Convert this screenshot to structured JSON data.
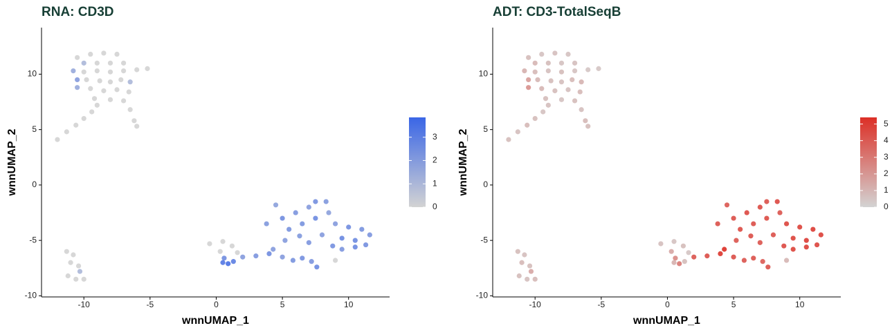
{
  "chart_data": [
    {
      "type": "scatter",
      "title": "RNA: CD3D",
      "x_label": "wnnUMAP_1",
      "y_label": "wnnUMAP_2",
      "xlim": [
        -13.2,
        13.1
      ],
      "ylim": [
        -10.1,
        14.2
      ],
      "xticks": [
        -10,
        -5,
        0,
        5,
        10
      ],
      "yticks": [
        -10,
        -5,
        0,
        5,
        10
      ],
      "colorbar": {
        "low": "#d3d3d3",
        "high": "#3a66e6",
        "lim": [
          0,
          3.85
        ],
        "ticks": [
          0,
          1,
          2,
          3
        ]
      },
      "x": [
        -10.5,
        -9.5,
        -8.5,
        -7.5,
        -10,
        -9,
        -8,
        -7,
        -10.8,
        -10,
        -9,
        -8,
        -7,
        -6,
        -5.2,
        -10.5,
        -9.8,
        -8.8,
        -8,
        -7.2,
        -6.5,
        -10.5,
        -9.5,
        -8.5,
        -7.5,
        -6.6,
        -9.2,
        -8,
        -7,
        -6.5,
        -6.2,
        -6,
        -12,
        -11.3,
        -10.6,
        -10,
        -9.4,
        -9,
        -11.3,
        -10.8,
        -11,
        -10.4,
        -10.3,
        -11.2,
        -10.6,
        -10,
        -0.5,
        0.5,
        1.2,
        1.6,
        0.3,
        0.6,
        0.9,
        0.5,
        1.3,
        2,
        3,
        4,
        4.3,
        5,
        5.8,
        6.5,
        7.2,
        7.6,
        5.2,
        5.5,
        5,
        6,
        7,
        7.5,
        8.3,
        6.5,
        7.5,
        8.5,
        9,
        10,
        11,
        11.6,
        10.5,
        9.5,
        8.8,
        9.5,
        10.5,
        11.3,
        8,
        7,
        6.3,
        9,
        4.5,
        3.8
      ],
      "y": [
        11.5,
        11.8,
        11.9,
        11.8,
        11,
        11,
        11,
        11,
        10.3,
        10.2,
        10.3,
        10.2,
        10.3,
        10.4,
        10.5,
        9.5,
        9.5,
        9.4,
        9.3,
        9.5,
        9.3,
        8.8,
        8.7,
        8.5,
        8.6,
        8.4,
        7.8,
        7.7,
        7.6,
        6.8,
        5.8,
        5.3,
        4.1,
        4.8,
        5.4,
        6,
        6.6,
        7.2,
        -6,
        -6.3,
        -7,
        -7.3,
        -7.8,
        -8.2,
        -8.5,
        -8.5,
        -5.3,
        -5.1,
        -5.5,
        -6.1,
        -6,
        -6.6,
        -7.1,
        -7,
        -6.9,
        -6.5,
        -6.4,
        -6.2,
        -5.8,
        -6.5,
        -6.8,
        -6.6,
        -6.9,
        -7.4,
        -5,
        -4,
        -3,
        -2.5,
        -2,
        -1.5,
        -1.5,
        -3.5,
        -3,
        -2.5,
        -3.5,
        -3.8,
        -4,
        -4.5,
        -5,
        -4.8,
        -5.5,
        -5.8,
        -5.6,
        -5.4,
        -4.5,
        -5.2,
        -4.6,
        -6.8,
        -1.8,
        -3.5
      ],
      "values": [
        0,
        0,
        0,
        0,
        1,
        0,
        0,
        0,
        1.5,
        0,
        0,
        0,
        0,
        0,
        0,
        2,
        0,
        0,
        0,
        0,
        1,
        1.5,
        0,
        0,
        0,
        0,
        0,
        0,
        0,
        0,
        0,
        0,
        0,
        0,
        0,
        0,
        0,
        0,
        0,
        0,
        0,
        0,
        1,
        0,
        0,
        0,
        0,
        0,
        0,
        0,
        0,
        2.5,
        3.5,
        3.2,
        3,
        2,
        2.2,
        2.5,
        2,
        2,
        2.3,
        2.4,
        2.2,
        2.6,
        2,
        2.3,
        2.5,
        2.2,
        2,
        2.4,
        2.1,
        2.3,
        2.6,
        1.8,
        2,
        2.5,
        2.3,
        2.2,
        2.6,
        2.7,
        2.4,
        2.2,
        2.6,
        2.4,
        2,
        2.2,
        2.1,
        0,
        1.8,
        2.1
      ]
    },
    {
      "type": "scatter",
      "title": "ADT: CD3-TotalSeqB",
      "x_label": "wnnUMAP_1",
      "y_label": "wnnUMAP_2",
      "xlim": [
        -13.2,
        13.1
      ],
      "ylim": [
        -10.1,
        14.2
      ],
      "xticks": [
        -10,
        -5,
        0,
        5,
        10
      ],
      "yticks": [
        -10,
        -5,
        0,
        5,
        10
      ],
      "colorbar": {
        "low": "#d3d3d3",
        "high": "#dc2f26",
        "lim": [
          0,
          5.4
        ],
        "ticks": [
          0,
          1,
          2,
          3,
          4,
          5
        ]
      },
      "x": [
        -10.5,
        -9.5,
        -8.5,
        -7.5,
        -10,
        -9,
        -8,
        -7,
        -10.8,
        -10,
        -9,
        -8,
        -7,
        -6,
        -5.2,
        -10.5,
        -9.8,
        -8.8,
        -8,
        -7.2,
        -6.5,
        -10.5,
        -9.5,
        -8.5,
        -7.5,
        -6.6,
        -9.2,
        -8,
        -7,
        -6.5,
        -6.2,
        -6,
        -12,
        -11.3,
        -10.6,
        -10,
        -9.4,
        -9,
        -11.3,
        -10.8,
        -11,
        -10.4,
        -10.3,
        -11.2,
        -10.6,
        -10,
        -0.5,
        0.5,
        1.2,
        1.6,
        0.3,
        0.6,
        0.9,
        0.5,
        1.3,
        2,
        3,
        4,
        4.3,
        5,
        5.8,
        6.5,
        7.2,
        7.6,
        5.2,
        5.5,
        5,
        6,
        7,
        7.5,
        8.3,
        6.5,
        7.5,
        8.5,
        9,
        10,
        11,
        11.6,
        10.5,
        9.5,
        8.8,
        9.5,
        10.5,
        11.3,
        8,
        7,
        6.3,
        9,
        4.5,
        3.8
      ],
      "y": [
        11.5,
        11.8,
        11.9,
        11.8,
        11,
        11,
        11,
        11,
        10.3,
        10.2,
        10.3,
        10.2,
        10.3,
        10.4,
        10.5,
        9.5,
        9.5,
        9.4,
        9.3,
        9.5,
        9.3,
        8.8,
        8.7,
        8.5,
        8.6,
        8.4,
        7.8,
        7.7,
        7.6,
        6.8,
        5.8,
        5.3,
        4.1,
        4.8,
        5.4,
        6,
        6.6,
        7.2,
        -6,
        -6.3,
        -7,
        -7.3,
        -7.8,
        -8.2,
        -8.5,
        -8.5,
        -5.3,
        -5.1,
        -5.5,
        -6.1,
        -6,
        -6.6,
        -7.1,
        -7,
        -6.9,
        -6.5,
        -6.4,
        -6.2,
        -5.8,
        -6.5,
        -6.8,
        -6.6,
        -6.9,
        -7.4,
        -5,
        -4,
        -3,
        -2.5,
        -2,
        -1.5,
        -1.5,
        -3.5,
        -3,
        -2.5,
        -3.5,
        -3.8,
        -4,
        -4.5,
        -5,
        -4.8,
        -5.5,
        -5.8,
        -5.6,
        -5.4,
        -4.5,
        -5.2,
        -4.6,
        -6.8,
        -1.8,
        -3.5
      ],
      "values": [
        0.8,
        0.6,
        0.7,
        0.6,
        1,
        0.8,
        0.6,
        0.7,
        1.2,
        0.9,
        0.7,
        0.8,
        0.6,
        0.5,
        0.5,
        1.8,
        1,
        0.8,
        0.7,
        0.9,
        1.1,
        2.2,
        1,
        0.8,
        0.7,
        0.9,
        0.8,
        0.6,
        0.8,
        0.7,
        0.9,
        0.8,
        0.8,
        0.7,
        0.9,
        0.8,
        0.6,
        0.7,
        0.8,
        0.7,
        0.9,
        0.8,
        1.5,
        0.8,
        0.7,
        0.9,
        0.7,
        0.6,
        0.8,
        0.5,
        1.5,
        2.5,
        3,
        1.2,
        0.8,
        4.2,
        4.4,
        5.2,
        5.4,
        4.4,
        4.2,
        4.3,
        4,
        4.3,
        4.2,
        4.5,
        4.4,
        4.6,
        4.5,
        4.3,
        4.6,
        4.4,
        4.5,
        4.2,
        4.7,
        4.8,
        5,
        4.9,
        5,
        4.8,
        4.6,
        4.8,
        4.9,
        4.7,
        4.3,
        4.2,
        4.4,
        1,
        4.1,
        4.3
      ]
    }
  ]
}
